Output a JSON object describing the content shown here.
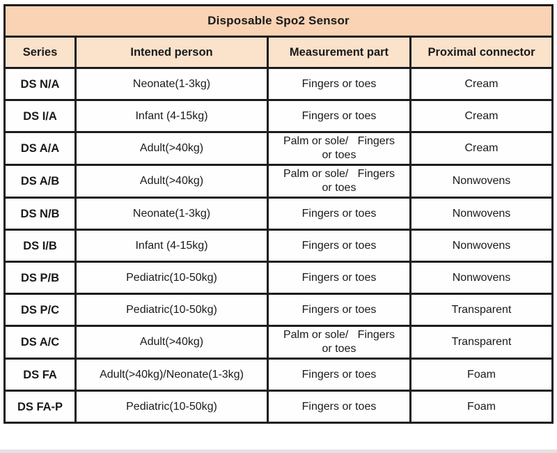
{
  "table": {
    "title": "Disposable Spo2 Sensor",
    "columns": [
      "Series",
      "Intened person",
      "Measurement part",
      "Proximal connector"
    ],
    "rows": [
      {
        "series": "DS N/A",
        "person": "Neonate(1-3kg)",
        "part": "Fingers or toes",
        "connector": "Cream"
      },
      {
        "series": "DS I/A",
        "person": "Infant (4-15kg)",
        "part": "Fingers or toes",
        "connector": "Cream"
      },
      {
        "series": "DS A/A",
        "person": "Adult(>40kg)",
        "part": "Palm or sole/   Fingers\nor toes",
        "connector": "Cream"
      },
      {
        "series": "DS A/B",
        "person": "Adult(>40kg)",
        "part": "Palm or sole/   Fingers\nor toes",
        "connector": "Nonwovens"
      },
      {
        "series": "DS N/B",
        "person": "Neonate(1-3kg)",
        "part": "Fingers or toes",
        "connector": "Nonwovens"
      },
      {
        "series": "DS I/B",
        "person": "Infant (4-15kg)",
        "part": "Fingers or toes",
        "connector": "Nonwovens"
      },
      {
        "series": "DS P/B",
        "person": "Pediatric(10-50kg)",
        "part": "Fingers or toes",
        "connector": "Nonwovens"
      },
      {
        "series": "DS P/C",
        "person": "Pediatric(10-50kg)",
        "part": "Fingers or toes",
        "connector": "Transparent"
      },
      {
        "series": "DS A/C",
        "person": "Adult(>40kg)",
        "part": "Palm or sole/   Fingers\nor toes",
        "connector": "Transparent"
      },
      {
        "series": "DS FA",
        "person": "Adult(>40kg)/Neonate(1-3kg)",
        "part": "Fingers or toes",
        "connector": "Foam"
      },
      {
        "series": "DS FA-P",
        "person": "Pediatric(10-50kg)",
        "part": "Fingers or toes",
        "connector": "Foam"
      }
    ],
    "colors": {
      "title_bg": "#f9d3b3",
      "header_bg": "#fae2cb",
      "row_bg": "#fefefe",
      "border": "#1c1c1c",
      "text": "#1a1a1a"
    }
  }
}
